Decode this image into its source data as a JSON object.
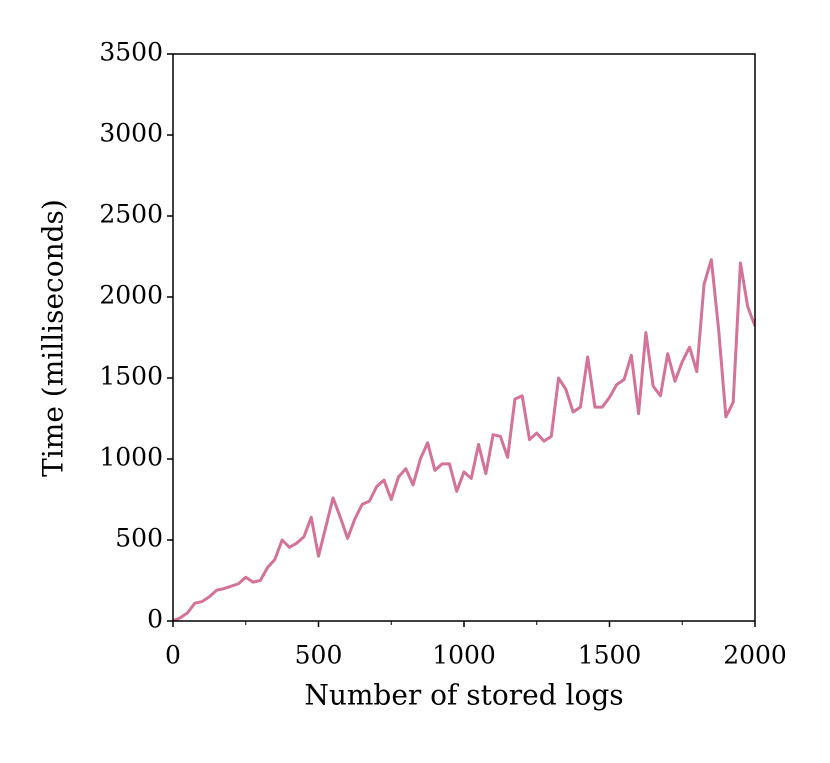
{
  "chart_data": {
    "type": "line",
    "x_label": "Number of stored logs",
    "y_label": "Time (milliseconds)",
    "x": [
      0,
      25,
      50,
      75,
      100,
      125,
      150,
      175,
      200,
      225,
      250,
      275,
      300,
      325,
      350,
      375,
      400,
      425,
      450,
      475,
      500,
      525,
      550,
      575,
      600,
      625,
      650,
      675,
      700,
      725,
      750,
      775,
      800,
      825,
      850,
      875,
      900,
      925,
      950,
      975,
      1000,
      1025,
      1050,
      1075,
      1100,
      1125,
      1150,
      1175,
      1200,
      1225,
      1250,
      1275,
      1300,
      1325,
      1350,
      1375,
      1400,
      1425,
      1450,
      1475,
      1500,
      1525,
      1550,
      1575,
      1600,
      1625,
      1650,
      1675,
      1700,
      1725,
      1750,
      1775,
      1800,
      1825,
      1850,
      1875,
      1900,
      1925,
      1950,
      1975,
      2000
    ],
    "series": [
      {
        "color": "#d4729a",
        "values": [
          0,
          20,
          50,
          110,
          120,
          150,
          190,
          200,
          215,
          230,
          270,
          240,
          250,
          330,
          380,
          500,
          455,
          480,
          520,
          640,
          400,
          580,
          760,
          640,
          510,
          630,
          720,
          740,
          830,
          870,
          750,
          890,
          940,
          840,
          1000,
          1100,
          930,
          970,
          970,
          800,
          920,
          880,
          1090,
          910,
          1150,
          1140,
          1010,
          1370,
          1390,
          1120,
          1160,
          1110,
          1140,
          1500,
          1430,
          1290,
          1320,
          1630,
          1320,
          1320,
          1380,
          1460,
          1490,
          1640,
          1280,
          1780,
          1450,
          1390,
          1650,
          1480,
          1600,
          1690,
          1540,
          2080,
          2230,
          1800,
          1260,
          1350,
          2210,
          1940,
          1820
        ]
      }
    ],
    "xlim": [
      0,
      2000
    ],
    "xticks": [
      0,
      500,
      1000,
      1500,
      2000
    ],
    "x_minor_ticks": [
      250,
      750,
      1250,
      1750
    ],
    "ylim": [
      0,
      3500
    ],
    "yticks": [
      0,
      500,
      1000,
      1500,
      2000,
      2500,
      3000,
      3500
    ]
  }
}
